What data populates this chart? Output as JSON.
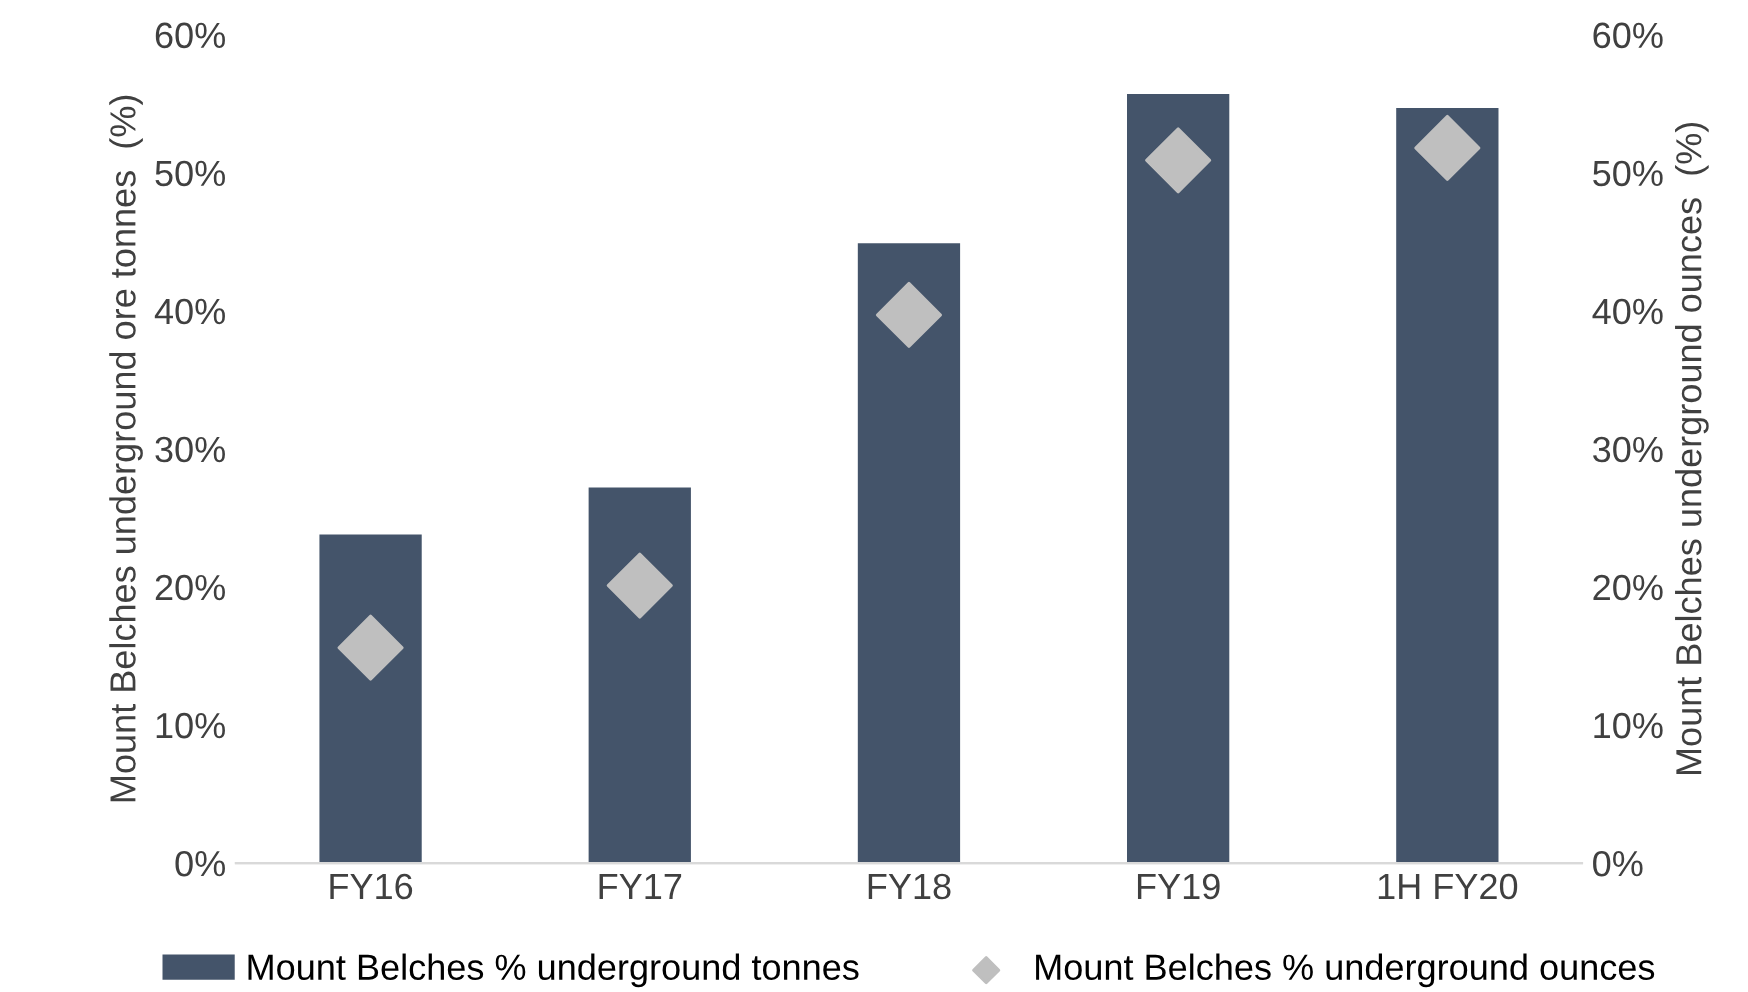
{
  "chart_data": {
    "type": "bar",
    "categories": [
      "FY16",
      "FY17",
      "FY18",
      "FY19",
      "1H FY20"
    ],
    "ylabel": "Mount Belches underground ore tonnes  (%)",
    "y2label": "Mount Belches underground ounces  (%)",
    "series": [
      {
        "name": "Mount Belches % underground tonnes",
        "color": "#44546a",
        "values": [
          23.8,
          27.2,
          44.9,
          55.7,
          54.7
        ]
      },
      {
        "name": "Mount Belches % underground ounces",
        "color": "#bfbfbf",
        "type": "scatter",
        "marker": "diamond",
        "values": [
          15.6,
          20.1,
          39.7,
          50.9,
          51.8
        ]
      }
    ],
    "ylim": [
      0,
      60
    ],
    "yticks": [
      {
        "value": 0,
        "label": "0%"
      },
      {
        "value": 10,
        "label": "10%"
      },
      {
        "value": 20,
        "label": "20%"
      },
      {
        "value": 30,
        "label": "30%"
      },
      {
        "value": 40,
        "label": "40%"
      },
      {
        "value": 50,
        "label": "50%"
      },
      {
        "value": 60,
        "label": "60%"
      }
    ],
    "y2lim": [
      0,
      60
    ],
    "y2ticks": [
      {
        "value": 0,
        "label": "0%"
      },
      {
        "value": 10,
        "label": "10%"
      },
      {
        "value": 20,
        "label": "20%"
      },
      {
        "value": 30,
        "label": "30%"
      },
      {
        "value": 40,
        "label": "40%"
      },
      {
        "value": 50,
        "label": "50%"
      },
      {
        "value": 60,
        "label": "60%"
      }
    ],
    "grid": false,
    "legend": "bottom"
  }
}
